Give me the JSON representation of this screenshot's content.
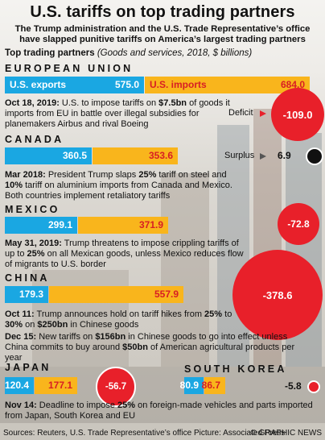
{
  "header": {
    "title": "U.S. tariffs on top trading partners",
    "subtitle": "The Trump administration and the U.S. Trade Representative’s office have slapped punitive tariffs on America’s largest trading partners",
    "top_label_bold": "Top trading partners",
    "top_label_italic": "(Goods and services, 2018, $ billions)"
  },
  "chart_data": {
    "type": "bar",
    "title": "Top trading partners",
    "units": "(Goods and services, 2018, $ billions)",
    "series_labels": {
      "exports": "U.S. exports",
      "imports": "U.S. imports",
      "deficit": "Deficit",
      "surplus": "Surplus"
    },
    "partners": [
      {
        "name": "EUROPEAN UNION",
        "exports": 575.0,
        "imports": 684.0,
        "balance": -109.0
      },
      {
        "name": "CANADA",
        "exports": 360.5,
        "imports": 353.6,
        "balance": 6.9
      },
      {
        "name": "MEXICO",
        "exports": 299.1,
        "imports": 371.9,
        "balance": -72.8
      },
      {
        "name": "CHINA",
        "exports": 179.3,
        "imports": 557.9,
        "balance": -378.6
      },
      {
        "name": "JAPAN",
        "exports": 120.4,
        "imports": 177.1,
        "balance": -56.7
      },
      {
        "name": "SOUTH KOREA",
        "exports": 80.9,
        "imports": 86.7,
        "balance": -5.8
      }
    ],
    "colors": {
      "exports": "#1aa7e2",
      "imports": "#f9b51c",
      "deficit": "#e8202a",
      "surplus": "#111111"
    }
  },
  "display": {
    "eu_exports": "575.0",
    "eu_imports": "684.0",
    "eu_balance": "-109.0",
    "ca_exports": "360.5",
    "ca_imports": "353.6",
    "ca_balance": "6.9",
    "mx_exports": "299.1",
    "mx_imports": "371.9",
    "mx_balance": "-72.8",
    "cn_exports": "179.3",
    "cn_imports": "557.9",
    "cn_balance": "-378.6",
    "jp_exports": "120.4",
    "jp_imports": "177.1",
    "jp_balance": "-56.7",
    "kr_exports": "80.9",
    "kr_imports": "86.7",
    "kr_balance": "-5.8",
    "deficit_label": "Deficit",
    "surplus_label": "Surplus"
  },
  "notes": {
    "eu": [
      {
        "b": "Oct 18, 2019:",
        "t": " U.S. to impose tariffs on "
      },
      {
        "b": "$7.5bn",
        "t": " of goods it imports from EU in battle over illegal subsidies for planemakers Airbus and rival Boeing"
      }
    ],
    "canada": [
      {
        "b": "Mar 2018:",
        "t": " President Trump slaps "
      },
      {
        "b": "25%",
        "t": " tariff on steel and "
      },
      {
        "b": "10%",
        "t": " tariff on aluminium imports from Canada and Mexico. Both countries implement retaliatory tariffs"
      }
    ],
    "mexico": [
      {
        "b": "May 31, 2019:",
        "t": " Trump threatens to impose crippling tariffs of up to "
      },
      {
        "b": "25%",
        "t": " on all Mexican goods, unless Mexico reduces flow of migrants to U.S. border"
      }
    ],
    "china1": [
      {
        "b": "Oct 11:",
        "t": " Trump announces hold on tariff hikes from "
      },
      {
        "b": "25%",
        "t": " to "
      },
      {
        "b": "30%",
        "t": " on "
      },
      {
        "b": "$250bn",
        "t": " in Chinese goods"
      }
    ],
    "china2": [
      {
        "b": "Dec 15:",
        "t": " New tariffs on "
      },
      {
        "b": "$156bn",
        "t": " in Chinese goods to go into effect unless China commits to buy around "
      },
      {
        "b": "$50bn",
        "t": " of American agricultural products per year"
      }
    ],
    "japan": [
      {
        "b": "Nov 14:",
        "t": " Deadline to impose "
      },
      {
        "b": "25%",
        "t": " on foreign-made vehicles and parts imported from Japan, South Korea and EU"
      }
    ]
  },
  "footer": {
    "source": "Sources: Reuters, U.S. Trade Representative’s office   Picture: Associated Press",
    "credit": "© GRAPHIC NEWS"
  }
}
